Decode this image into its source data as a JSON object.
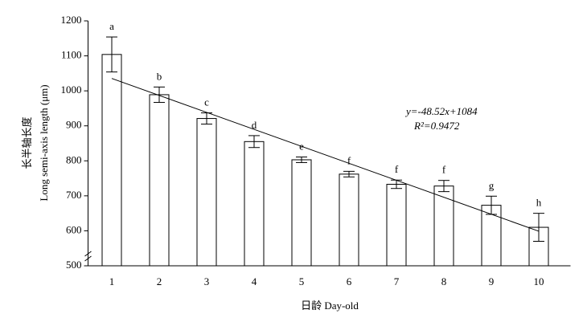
{
  "chart_data": {
    "type": "bar",
    "x_label": "日龄 Day-old",
    "y_label_cn": "长半轴长度",
    "y_label": "Long semi-axis length (μm)",
    "categories": [
      "1",
      "2",
      "3",
      "4",
      "5",
      "6",
      "7",
      "8",
      "9",
      "10"
    ],
    "x": [
      1,
      2,
      3,
      4,
      5,
      6,
      7,
      8,
      9,
      10
    ],
    "values": [
      1104,
      989,
      921,
      855,
      803,
      762,
      733,
      728,
      673,
      610
    ],
    "errors": [
      50,
      22,
      16,
      17,
      8,
      8,
      12,
      16,
      26,
      40
    ],
    "letters": [
      "a",
      "b",
      "c",
      "d",
      "e",
      "f",
      "f",
      "f",
      "g",
      "h"
    ],
    "color": "#ffffff",
    "ylim": [
      500,
      1200
    ],
    "yticks": [
      500,
      600,
      700,
      800,
      900,
      1000,
      1100,
      1200
    ],
    "axis_break": true,
    "trendline": {
      "slope": -48.52,
      "intercept": 1084,
      "equation": "y=-48.52x+1084",
      "r_squared": "R²=0.9472"
    }
  }
}
